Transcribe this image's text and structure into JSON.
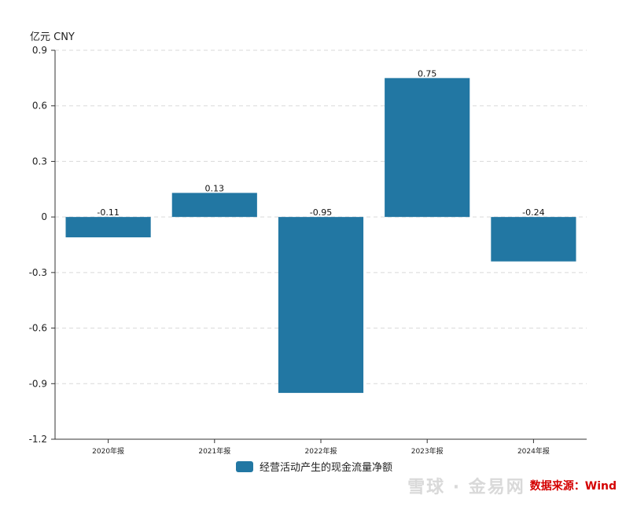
{
  "chart_data": {
    "type": "bar",
    "unit_label": "亿元  CNY",
    "categories": [
      "2020年报",
      "2021年报",
      "2022年报",
      "2023年报",
      "2024年报"
    ],
    "series": [
      {
        "name": "经营活动产生的现金流量净额",
        "values": [
          -0.11,
          0.13,
          -0.95,
          0.75,
          -0.24
        ]
      }
    ],
    "data_labels": [
      "-0.11",
      "0.13",
      "-0.95",
      "0.75",
      "-0.24"
    ],
    "yticks": [
      0.9,
      0.6,
      0.3,
      0,
      -0.3,
      -0.6,
      -0.9,
      -1.2
    ],
    "ytick_labels": [
      "0.9",
      "0.6",
      "0.3",
      "0",
      "-0.3",
      "-0.6",
      "-0.9",
      "-1.2"
    ],
    "ylim": [
      -1.2,
      0.9
    ],
    "grid": true,
    "legend_position": "bottom-center",
    "bar_color": "#2277a3"
  },
  "watermark": {
    "logo_text": "雪球 · 金易网",
    "source_text": "数据来源：Wind"
  }
}
